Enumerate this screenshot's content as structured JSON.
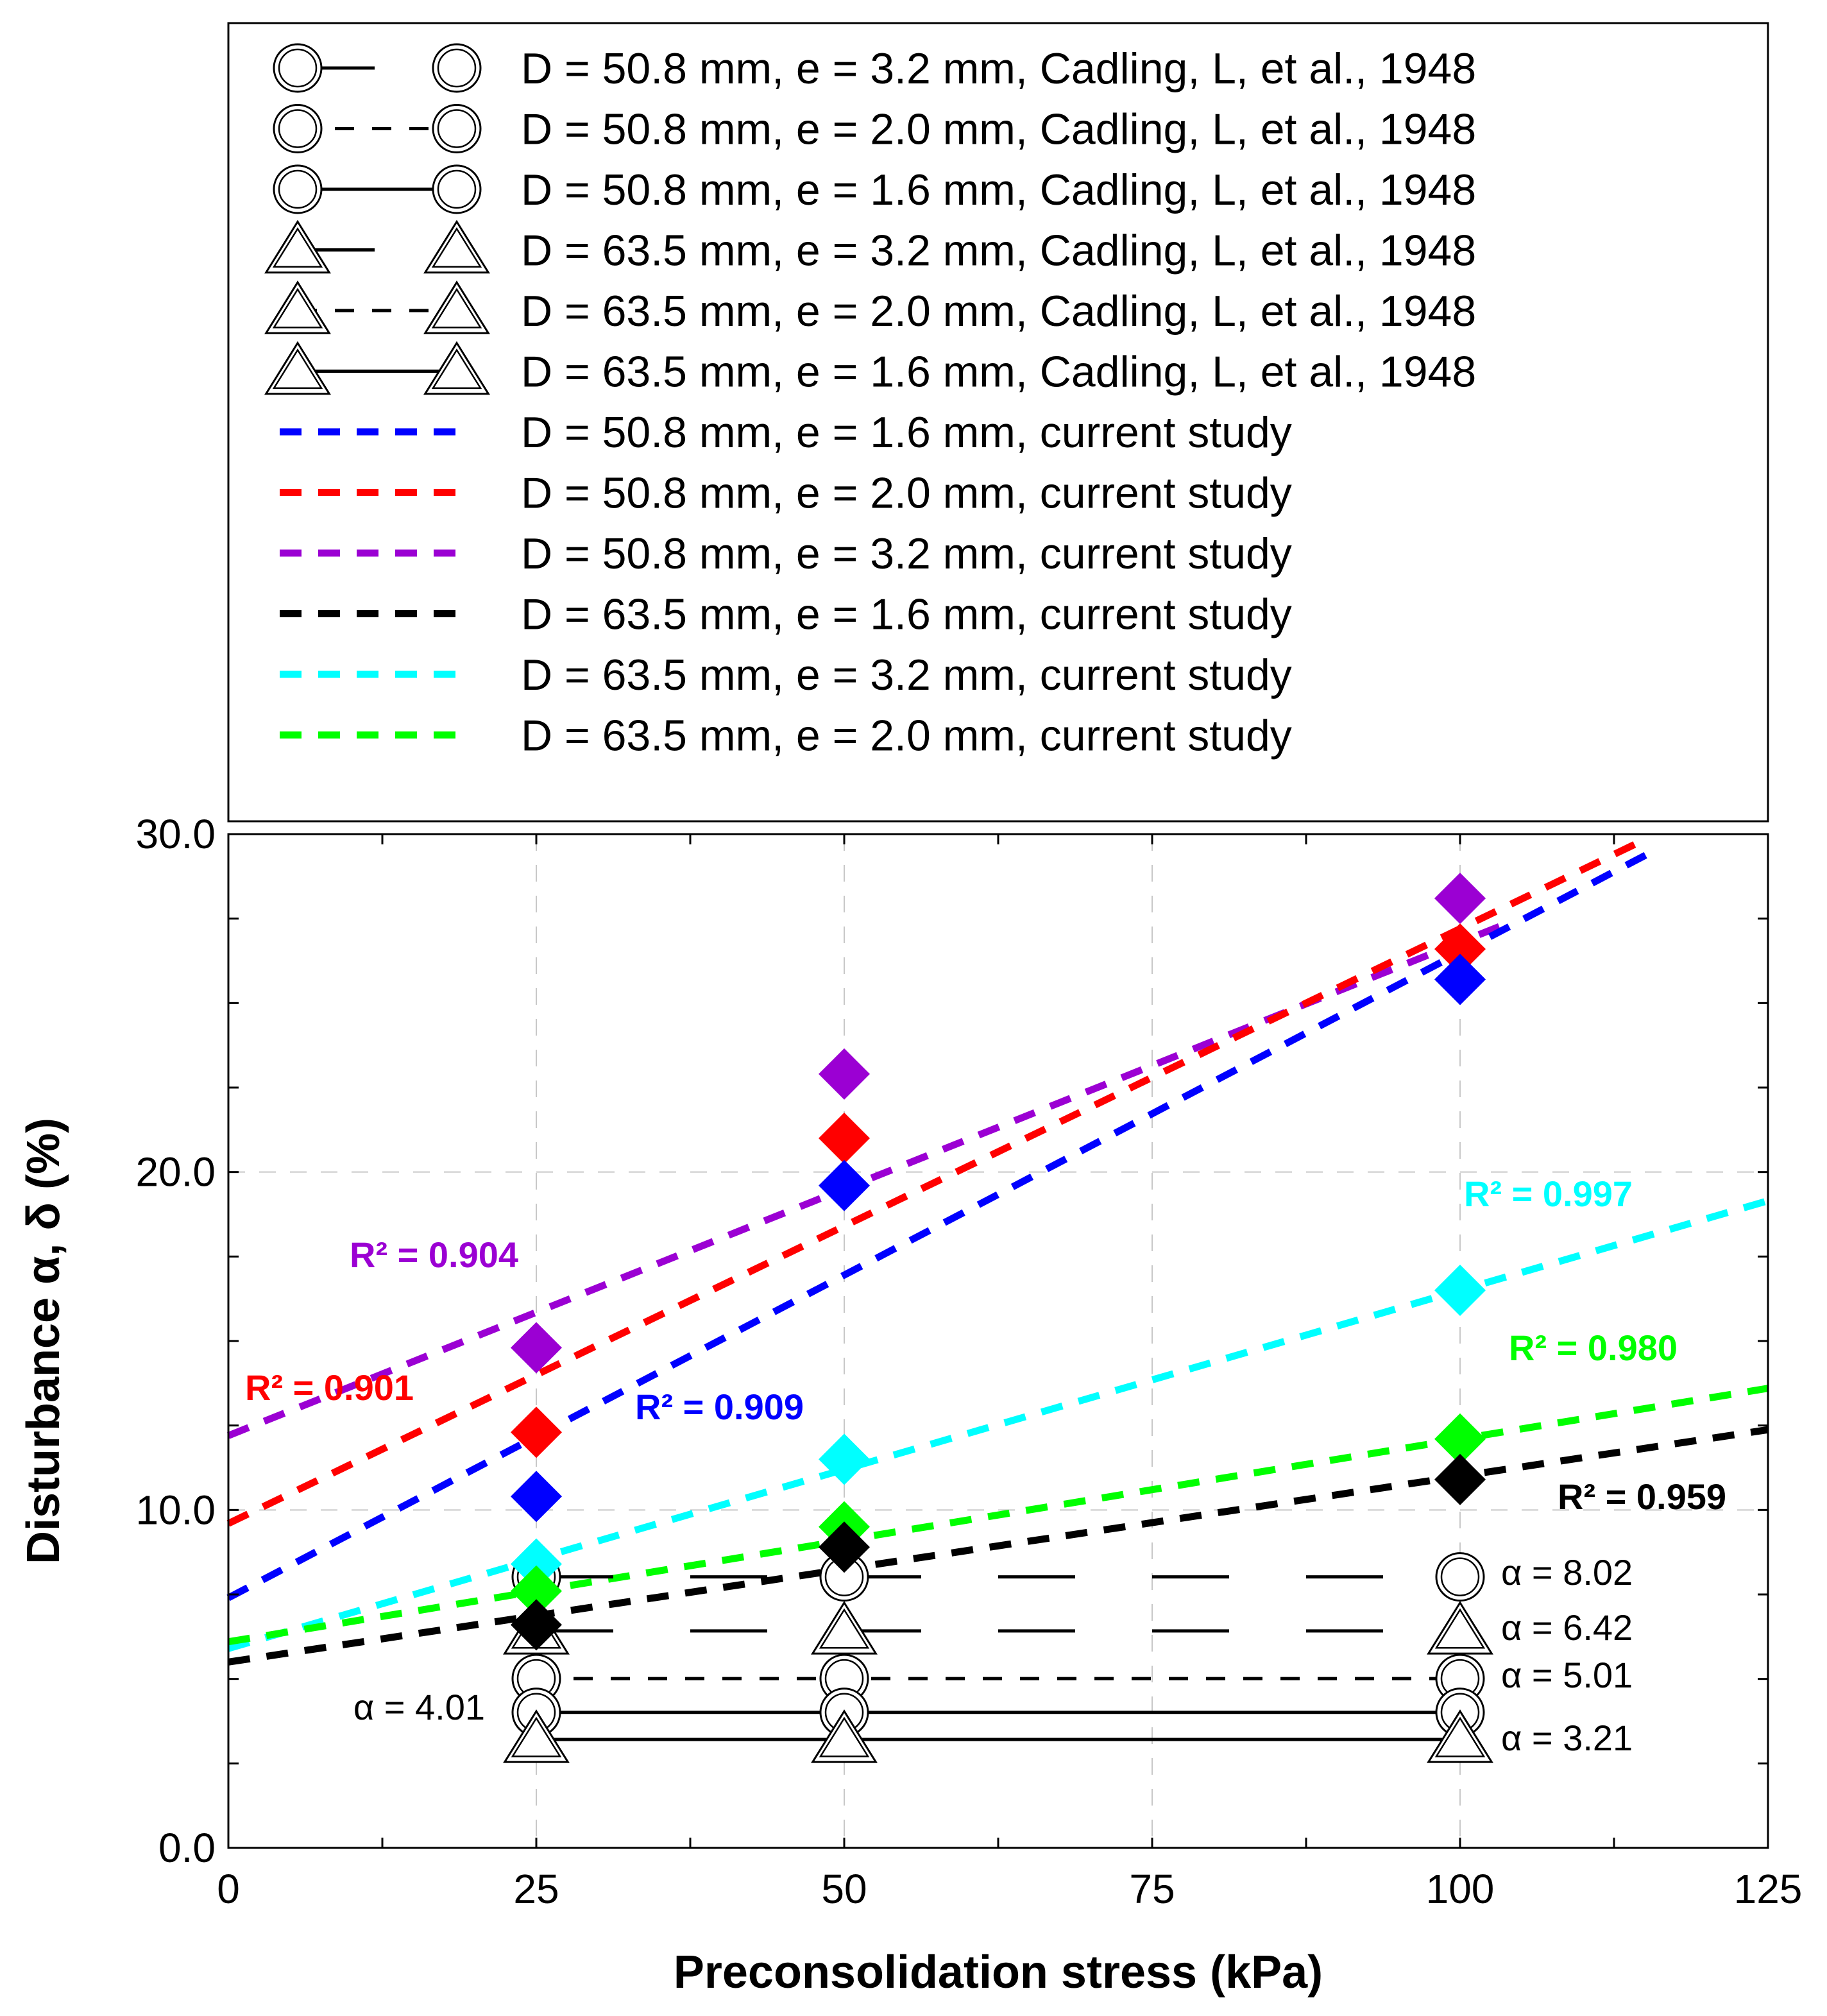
{
  "chart_data": {
    "type": "scatter",
    "xlabel": "Preconsolidation stress (kPa)",
    "ylabel": "Disturbance α, δ (%)",
    "xlim": [
      0,
      125
    ],
    "ylim": [
      0,
      30
    ],
    "xticks": [
      0,
      25,
      50,
      75,
      100,
      125
    ],
    "yticks": [
      0,
      10,
      20,
      30
    ],
    "ytick_labels": [
      "0.0",
      "10.0",
      "20.0",
      "30.0"
    ],
    "grid": true,
    "colors": {
      "blue": "#0000ff",
      "red": "#ff0000",
      "purple": "#9b00d3",
      "black": "#000000",
      "cyan": "#00ffff",
      "green": "#00ff00"
    },
    "legend": [
      {
        "label": "D = 50.8 mm, e = 3.2 mm, Cadling, L, et al., 1948",
        "marker": "circle",
        "line": "long-dash"
      },
      {
        "label": "D = 50.8 mm, e = 2.0 mm, Cadling, L, et al., 1948",
        "marker": "circle",
        "line": "dash"
      },
      {
        "label": "D = 50.8 mm, e = 1.6 mm, Cadling, L, et al., 1948",
        "marker": "circle",
        "line": "solid"
      },
      {
        "label": "D = 63.5 mm, e = 3.2 mm, Cadling, L, et al., 1948",
        "marker": "triangle",
        "line": "long-dash"
      },
      {
        "label": "D = 63.5 mm, e = 2.0 mm, Cadling, L, et al., 1948",
        "marker": "triangle",
        "line": "dash"
      },
      {
        "label": "D = 63.5 mm, e = 1.6 mm, Cadling, L, et al., 1948",
        "marker": "triangle",
        "line": "solid"
      },
      {
        "label": "D = 50.8 mm, e = 1.6 mm, current study",
        "color": "blue"
      },
      {
        "label": "D = 50.8 mm, e = 2.0 mm, current study",
        "color": "red"
      },
      {
        "label": "D = 50.8 mm, e = 3.2 mm, current study",
        "color": "purple"
      },
      {
        "label": "D = 63.5 mm, e = 1.6 mm, current study",
        "color": "black"
      },
      {
        "label": "D = 63.5 mm, e = 3.2 mm, current study",
        "color": "cyan"
      },
      {
        "label": "D = 63.5 mm, e = 2.0 mm, current study",
        "color": "green"
      }
    ],
    "series": [
      {
        "name": "D = 50.8 mm, e = 3.2 mm, current study",
        "color": "purple",
        "x": [
          25,
          50,
          100
        ],
        "y": [
          14.8,
          22.9,
          28.1
        ],
        "fit": [
          12.2,
          0.146
        ],
        "fit_xmax": 104,
        "r2_label": "R² = 0.904"
      },
      {
        "name": "D = 50.8 mm, e = 2.0 mm, current study",
        "color": "red",
        "x": [
          25,
          50,
          100
        ],
        "y": [
          12.3,
          21.0,
          26.6
        ],
        "fit": [
          9.6,
          0.176
        ],
        "fit_xmax": 115,
        "r2_label": "R² = 0.901"
      },
      {
        "name": "D = 50.8 mm, e = 1.6 mm, current study",
        "color": "blue",
        "x": [
          25,
          50,
          100
        ],
        "y": [
          10.4,
          19.6,
          25.7
        ],
        "fit": [
          7.4,
          0.191
        ],
        "fit_xmax": 116,
        "r2_label": "R² = 0.909"
      },
      {
        "name": "D = 63.5 mm, e = 3.2 mm, current study",
        "color": "cyan",
        "x": [
          25,
          50,
          100
        ],
        "y": [
          8.4,
          11.5,
          16.5
        ],
        "fit": [
          5.9,
          0.106
        ],
        "fit_xmax": 125,
        "r2_label": "R² = 0.997"
      },
      {
        "name": "D = 63.5 mm, e = 2.0 mm, current study",
        "color": "green",
        "x": [
          25,
          50,
          100
        ],
        "y": [
          7.6,
          9.5,
          12.1
        ],
        "fit": [
          6.1,
          0.06
        ],
        "fit_xmax": 125,
        "r2_label": "R² = 0.980"
      },
      {
        "name": "D = 63.5 mm, e = 1.6 mm, current study",
        "color": "black",
        "x": [
          25,
          50,
          100
        ],
        "y": [
          6.6,
          8.9,
          10.9
        ],
        "fit": [
          5.5,
          0.055
        ],
        "fit_xmax": 125,
        "r2_label": "R² = 0.959"
      }
    ],
    "reference_series": [
      {
        "name": "D = 50.8 mm, e = 3.2 mm, Cadling, L, et al., 1948",
        "marker": "circle",
        "line": "long-dash",
        "x": [
          25,
          50,
          100
        ],
        "y": 8.02,
        "label": "α = 8.02"
      },
      {
        "name": "D = 63.5 mm, e = 3.2 mm, Cadling, L, et al., 1948",
        "marker": "triangle",
        "line": "long-dash",
        "x": [
          25,
          50,
          100
        ],
        "y": 6.42,
        "label": "α = 6.42"
      },
      {
        "name": "D = 50.8 mm, e = 2.0 mm, Cadling, L, et al., 1948",
        "marker": "circle",
        "line": "dash",
        "x": [
          25,
          50,
          100
        ],
        "y": 5.01,
        "label": "α = 5.01"
      },
      {
        "name": "D = 50.8 mm, e = 1.6 mm, Cadling, L, et al., 1948",
        "marker": "circle",
        "line": "solid",
        "x": [
          25,
          50,
          100
        ],
        "y": 4.01,
        "label": "α = 4.01"
      },
      {
        "name": "D = 63.5 mm, e = 1.6 mm, Cadling, L, et al., 1948",
        "marker": "triangle",
        "line": "solid",
        "x": [
          25,
          50,
          100
        ],
        "y": 3.21,
        "label": "α = 3.21"
      }
    ]
  }
}
